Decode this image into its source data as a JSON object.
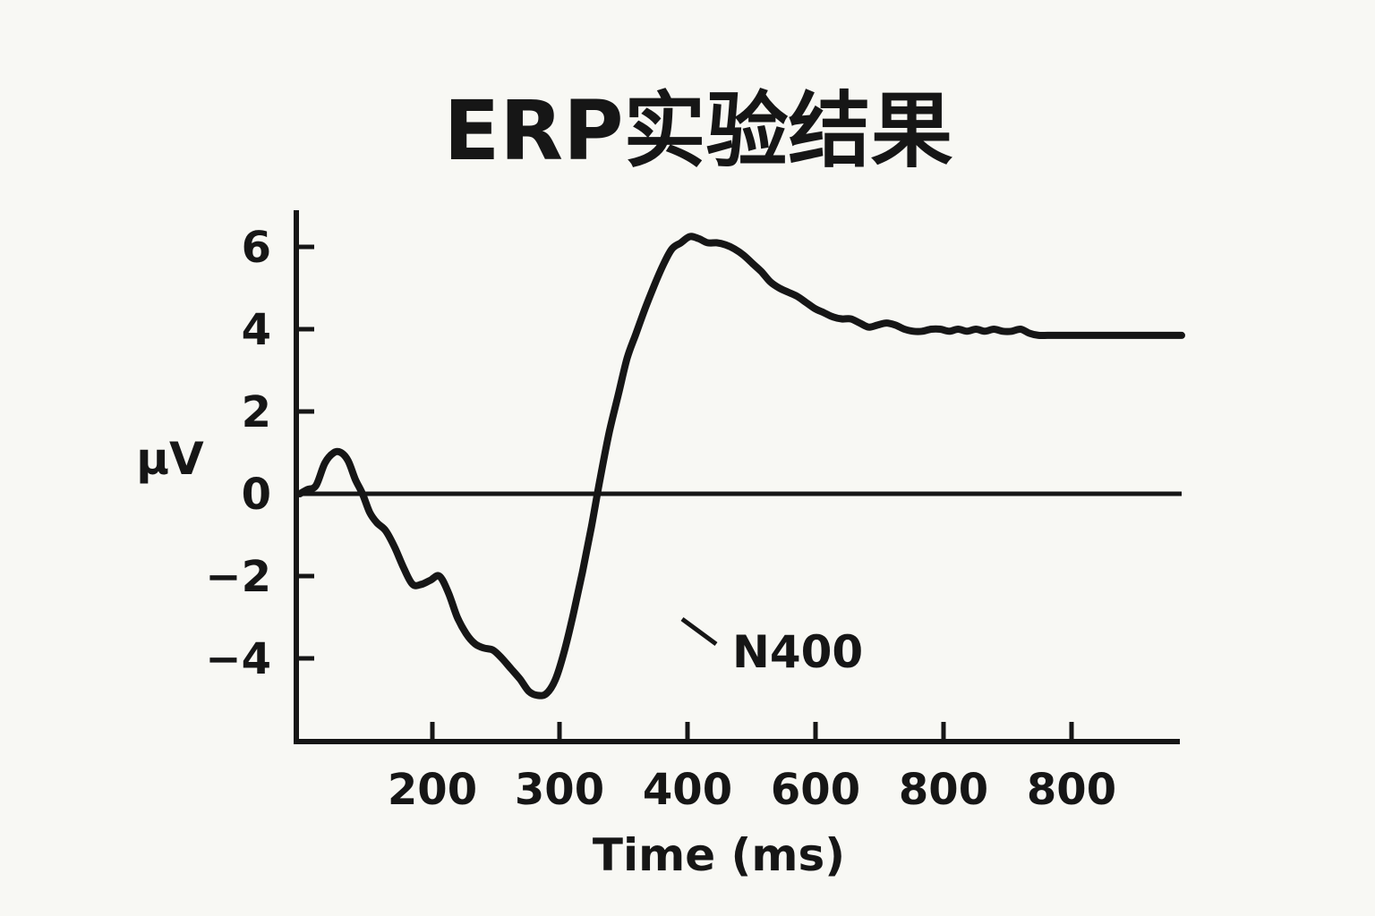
{
  "chart_data": {
    "type": "line",
    "title": "ERP实验结果",
    "xlabel": "Time (ms)",
    "ylabel": "μV",
    "x_tick_labels": [
      "200",
      "300",
      "400",
      "600",
      "800",
      "800"
    ],
    "y_ticks": [
      6,
      4,
      2,
      0,
      -2,
      -4
    ],
    "y_tick_labels": [
      "6",
      "4",
      "2",
      "0",
      "−2",
      "−4"
    ],
    "ylim": [
      -6,
      7
    ],
    "grid": false,
    "legend": "none",
    "baseline_y": 0,
    "annotations": [
      {
        "text": "N400",
        "x": 370,
        "y": -3.1
      }
    ],
    "series": [
      {
        "color": "#161616",
        "x": [
          100,
          108,
          118,
          128,
          138,
          146,
          154,
          162,
          170,
          178,
          186,
          196,
          206,
          216,
          226,
          236,
          246,
          256,
          266,
          276,
          286,
          296,
          306,
          316,
          326,
          336,
          346,
          356,
          366,
          376,
          386,
          396,
          406,
          416,
          426,
          436,
          446,
          456,
          466,
          476,
          486,
          496,
          506,
          516,
          526,
          536,
          546,
          556,
          566,
          576,
          586,
          596,
          606,
          616,
          626,
          636,
          646,
          656,
          666,
          676,
          686,
          696,
          706,
          716,
          726,
          736,
          746,
          756,
          766,
          776,
          786,
          796,
          806,
          816,
          826,
          836,
          846,
          856,
          866,
          876,
          886,
          896,
          906,
          916,
          926,
          936,
          946,
          956,
          966,
          976,
          986,
          996,
          1006,
          1016,
          1026,
          1036,
          1046,
          1056,
          1066,
          1076,
          1086
        ],
        "y": [
          0,
          0.1,
          0.2,
          0.75,
          1.0,
          1.0,
          0.8,
          0.35,
          0,
          -0.45,
          -0.7,
          -0.9,
          -1.3,
          -1.8,
          -2.2,
          -2.2,
          -2.1,
          -2.0,
          -2.4,
          -3.0,
          -3.4,
          -3.65,
          -3.75,
          -3.8,
          -4.0,
          -4.25,
          -4.5,
          -4.8,
          -4.9,
          -4.85,
          -4.5,
          -3.8,
          -2.9,
          -1.9,
          -0.8,
          0.4,
          1.5,
          2.4,
          3.3,
          3.9,
          4.5,
          5.05,
          5.55,
          5.95,
          6.1,
          6.25,
          6.2,
          6.1,
          6.1,
          6.05,
          5.95,
          5.8,
          5.6,
          5.4,
          5.15,
          5.0,
          4.9,
          4.8,
          4.65,
          4.5,
          4.4,
          4.3,
          4.25,
          4.25,
          4.15,
          4.05,
          4.1,
          4.15,
          4.1,
          4.0,
          3.95,
          3.95,
          4.0,
          4.0,
          3.95,
          4.0,
          3.95,
          4.0,
          3.95,
          4.0,
          3.95,
          3.95,
          4.0,
          3.9,
          3.85,
          3.85,
          3.85,
          3.85,
          3.85,
          3.85,
          3.85,
          3.85,
          3.85,
          3.85,
          3.85,
          3.85,
          3.85,
          3.85,
          3.85,
          3.85,
          3.85
        ]
      }
    ]
  }
}
